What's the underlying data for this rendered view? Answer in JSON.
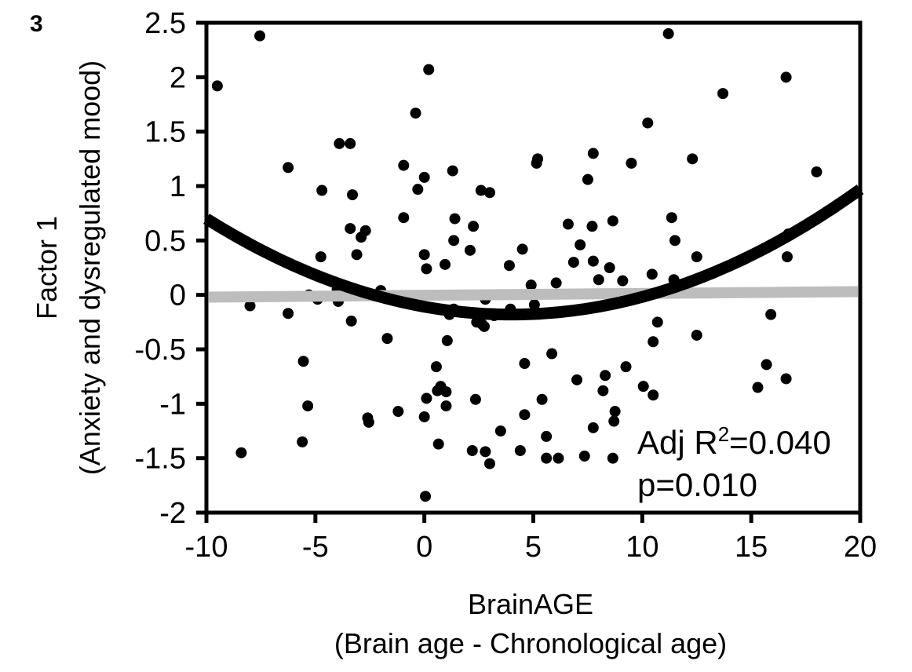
{
  "panel_label": "3",
  "chart_data": {
    "type": "scatter",
    "title": "",
    "xlabel": "BrainAGE",
    "xlabel_sub": "(Brain age - Chronological age)",
    "ylabel": "Factor 1",
    "ylabel_sub": "(Anxiety and dysregulated mood)",
    "xlim": [
      -10,
      20
    ],
    "ylim": [
      -2,
      2.5
    ],
    "xticks": [
      -10,
      -5,
      0,
      5,
      10,
      15,
      20
    ],
    "xtick_labels": [
      "-10",
      "-5",
      "0",
      "5",
      "10",
      "15",
      "20"
    ],
    "yticks": [
      -2,
      -1.5,
      -1,
      -0.5,
      0,
      0.5,
      1,
      1.5,
      2,
      2.5
    ],
    "ytick_labels": [
      "-2",
      "-1.5",
      "-1",
      "-0.5",
      "0",
      "0.5",
      "1",
      "1.5",
      "2",
      "2.5"
    ],
    "grid": false,
    "annotation_line1": "Adj R",
    "annotation_sup": "2",
    "annotation_value": "=0.040",
    "annotation_line2": "p=0.010",
    "colors": {
      "points": "#000000",
      "quadratic_fit": "#000000",
      "linear_fit": "#bdbdbd"
    },
    "fits": {
      "quadratic": {
        "vertex_x": 4,
        "vertex_y": -0.18,
        "a": 0.00449
      },
      "linear": {
        "y_at_xmin": -0.02,
        "y_at_xmax": 0.03
      }
    },
    "points": [
      [
        -9.5,
        1.92
      ],
      [
        -7.55,
        2.38
      ],
      [
        -8.0,
        -0.1
      ],
      [
        -8.4,
        -1.45
      ],
      [
        -6.25,
        1.17
      ],
      [
        -6.25,
        -0.17
      ],
      [
        -5.55,
        -0.61
      ],
      [
        -5.35,
        -1.02
      ],
      [
        -5.6,
        -1.35
      ],
      [
        -5.3,
        0.0
      ],
      [
        -4.7,
        0.96
      ],
      [
        -4.75,
        0.35
      ],
      [
        -4.9,
        -0.04
      ],
      [
        -3.9,
        1.39
      ],
      [
        -3.4,
        1.39
      ],
      [
        -3.3,
        0.92
      ],
      [
        -3.4,
        0.61
      ],
      [
        -3.1,
        0.37
      ],
      [
        -2.9,
        0.53
      ],
      [
        -2.7,
        0.59
      ],
      [
        -4.0,
        0.05
      ],
      [
        -3.95,
        -0.06
      ],
      [
        -3.35,
        -0.24
      ],
      [
        -2.6,
        -1.13
      ],
      [
        -2.55,
        -1.17
      ],
      [
        -2.0,
        0.04
      ],
      [
        -1.7,
        -0.4
      ],
      [
        -1.5,
        -0.04
      ],
      [
        -1.2,
        -1.07
      ],
      [
        -0.95,
        1.19
      ],
      [
        -0.95,
        0.71
      ],
      [
        -0.4,
        1.67
      ],
      [
        -0.3,
        0.97
      ],
      [
        0,
        1.08
      ],
      [
        0,
        0.37
      ],
      [
        0.1,
        0.24
      ],
      [
        0.2,
        2.07
      ],
      [
        0,
        -1.12
      ],
      [
        0.05,
        -1.85
      ],
      [
        0.1,
        -0.95
      ],
      [
        0.55,
        -0.66
      ],
      [
        0.6,
        -0.88
      ],
      [
        0.65,
        -1.37
      ],
      [
        0.75,
        -0.84
      ],
      [
        1.0,
        -1.02
      ],
      [
        0.95,
        0.28
      ],
      [
        1.05,
        -0.42
      ],
      [
        1.0,
        -0.89
      ],
      [
        1.3,
        1.14
      ],
      [
        1.35,
        0.5
      ],
      [
        1.4,
        0.7
      ],
      [
        1.15,
        -0.18
      ],
      [
        1.35,
        -0.13
      ],
      [
        2.1,
        0.41
      ],
      [
        2.25,
        0.63
      ],
      [
        2.2,
        -1.43
      ],
      [
        2.35,
        -0.96
      ],
      [
        2.4,
        -0.25
      ],
      [
        2.6,
        0.96
      ],
      [
        3.0,
        0.94
      ],
      [
        2.65,
        -0.27
      ],
      [
        2.75,
        -0.29
      ],
      [
        2.8,
        -1.44
      ],
      [
        3.0,
        -1.55
      ],
      [
        3.2,
        -0.19
      ],
      [
        2.8,
        -0.04
      ],
      [
        3.5,
        -1.25
      ],
      [
        3.9,
        0.27
      ],
      [
        3.95,
        -0.13
      ],
      [
        4.4,
        -1.43
      ],
      [
        4.5,
        0.42
      ],
      [
        4.6,
        -1.1
      ],
      [
        4.6,
        -0.63
      ],
      [
        4.9,
        0.09
      ],
      [
        5.05,
        -0.09
      ],
      [
        5.2,
        1.25
      ],
      [
        5.15,
        1.21
      ],
      [
        5.4,
        -0.96
      ],
      [
        5.6,
        -1.3
      ],
      [
        5.6,
        -1.5
      ],
      [
        5.85,
        -0.54
      ],
      [
        6.05,
        0.11
      ],
      [
        6.15,
        -1.5
      ],
      [
        6.6,
        0.65
      ],
      [
        6.85,
        0.3
      ],
      [
        7.0,
        -0.78
      ],
      [
        7.15,
        0.46
      ],
      [
        7.35,
        -1.48
      ],
      [
        7.5,
        1.06
      ],
      [
        7.75,
        -1.22
      ],
      [
        7.75,
        1.3
      ],
      [
        7.7,
        0.63
      ],
      [
        7.75,
        0.31
      ],
      [
        8.0,
        0.14
      ],
      [
        8.2,
        -0.88
      ],
      [
        8.3,
        -0.74
      ],
      [
        8.5,
        0.25
      ],
      [
        8.65,
        0.68
      ],
      [
        8.7,
        -1.16
      ],
      [
        8.75,
        -1.07
      ],
      [
        8.65,
        -1.5
      ],
      [
        9.1,
        0.13
      ],
      [
        9.25,
        -0.66
      ],
      [
        9.5,
        1.21
      ],
      [
        10.05,
        -0.84
      ],
      [
        10.25,
        1.58
      ],
      [
        10.45,
        0.19
      ],
      [
        10.5,
        -0.43
      ],
      [
        10.5,
        -0.92
      ],
      [
        10.7,
        -0.25
      ],
      [
        11.2,
        2.4
      ],
      [
        11.35,
        0.71
      ],
      [
        11.45,
        0.14
      ],
      [
        11.5,
        0.5
      ],
      [
        12.3,
        1.25
      ],
      [
        12.5,
        -0.37
      ],
      [
        12.5,
        0.35
      ],
      [
        13.7,
        1.85
      ],
      [
        15.3,
        -0.85
      ],
      [
        15.7,
        -0.64
      ],
      [
        15.9,
        -0.18
      ],
      [
        16.6,
        2.0
      ],
      [
        16.65,
        0.35
      ],
      [
        16.6,
        -0.77
      ],
      [
        16.7,
        0.56
      ],
      [
        18.0,
        1.13
      ]
    ]
  }
}
